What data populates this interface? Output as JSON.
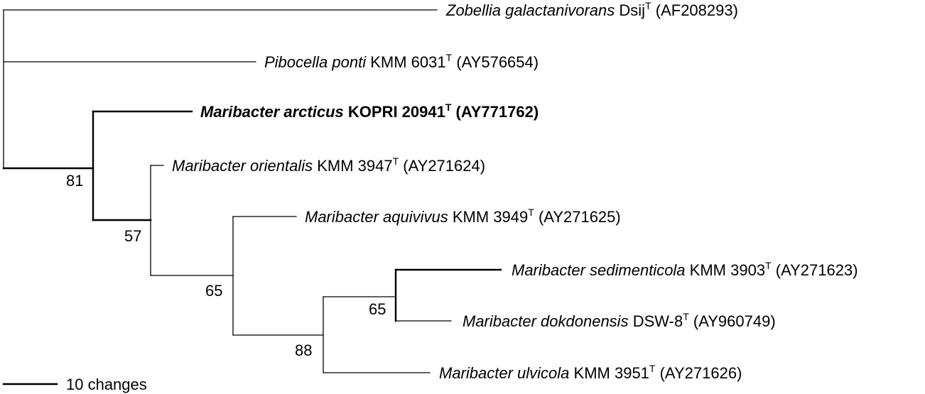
{
  "tree": {
    "taxa": [
      {
        "id": "zobellia",
        "species": "Zobellia galactanivorans",
        "strain": "Dsij",
        "accession": "(AF208293)",
        "bold": false
      },
      {
        "id": "pibocella",
        "species": "Pibocella ponti",
        "strain": "KMM 6031",
        "accession": "(AY576654)",
        "bold": false
      },
      {
        "id": "arcticus",
        "species": "Maribacter arcticus",
        "strain": "KOPRI 20941",
        "accession": "(AY771762)",
        "bold": true
      },
      {
        "id": "orientalis",
        "species": "Maribacter orientalis",
        "strain": "KMM 3947",
        "accession": "(AY271624)",
        "bold": false
      },
      {
        "id": "aquivivus",
        "species": "Maribacter aquivivus",
        "strain": "KMM 3949",
        "accession": "(AY271625)",
        "bold": false
      },
      {
        "id": "sedimenticola",
        "species": "Maribacter sedimenticola",
        "strain": "KMM 3903",
        "accession": "(AY271623)",
        "bold": false
      },
      {
        "id": "dokdonensis",
        "species": "Maribacter dokdonensis",
        "strain": "DSW-8",
        "accession": "(AY960749)",
        "bold": false
      },
      {
        "id": "ulvicola",
        "species": "Maribacter ulvicola",
        "strain": "KMM 3951",
        "accession": "(AY271626)",
        "bold": false
      }
    ],
    "type_strain_mark": "T",
    "bootstrap": {
      "maribacter_clade": "81",
      "orientalis_clade": "57",
      "aquivivus_clade": "65",
      "ulvicola_clade": "88",
      "sedimenticola_clade": "65"
    },
    "scale_bar": {
      "label": "10 changes"
    }
  }
}
